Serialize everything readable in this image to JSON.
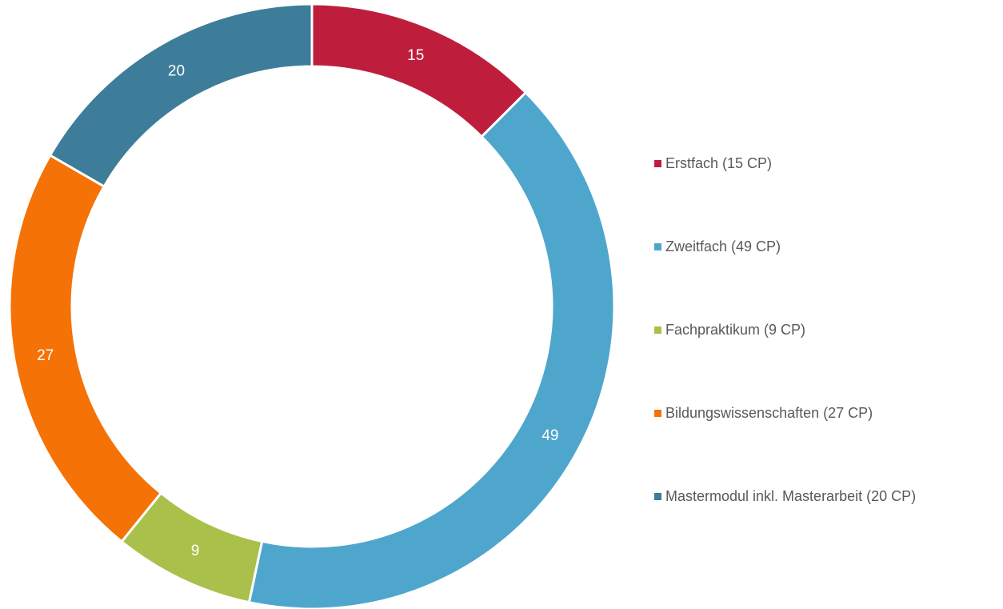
{
  "chart_data": {
    "type": "donut",
    "categories": [
      "Erstfach (15 CP)",
      "Zweitfach (49 CP)",
      "Fachpraktikum (9 CP)",
      "Bildungswissenschaften (27 CP)",
      "Mastermodul inkl. Masterarbeit (20 CP)"
    ],
    "values": [
      15,
      49,
      9,
      27,
      20
    ],
    "colors": [
      "#be1e3c",
      "#4ea6cc",
      "#a9c04a",
      "#f57206",
      "#3d7d99"
    ],
    "legend": "right"
  }
}
